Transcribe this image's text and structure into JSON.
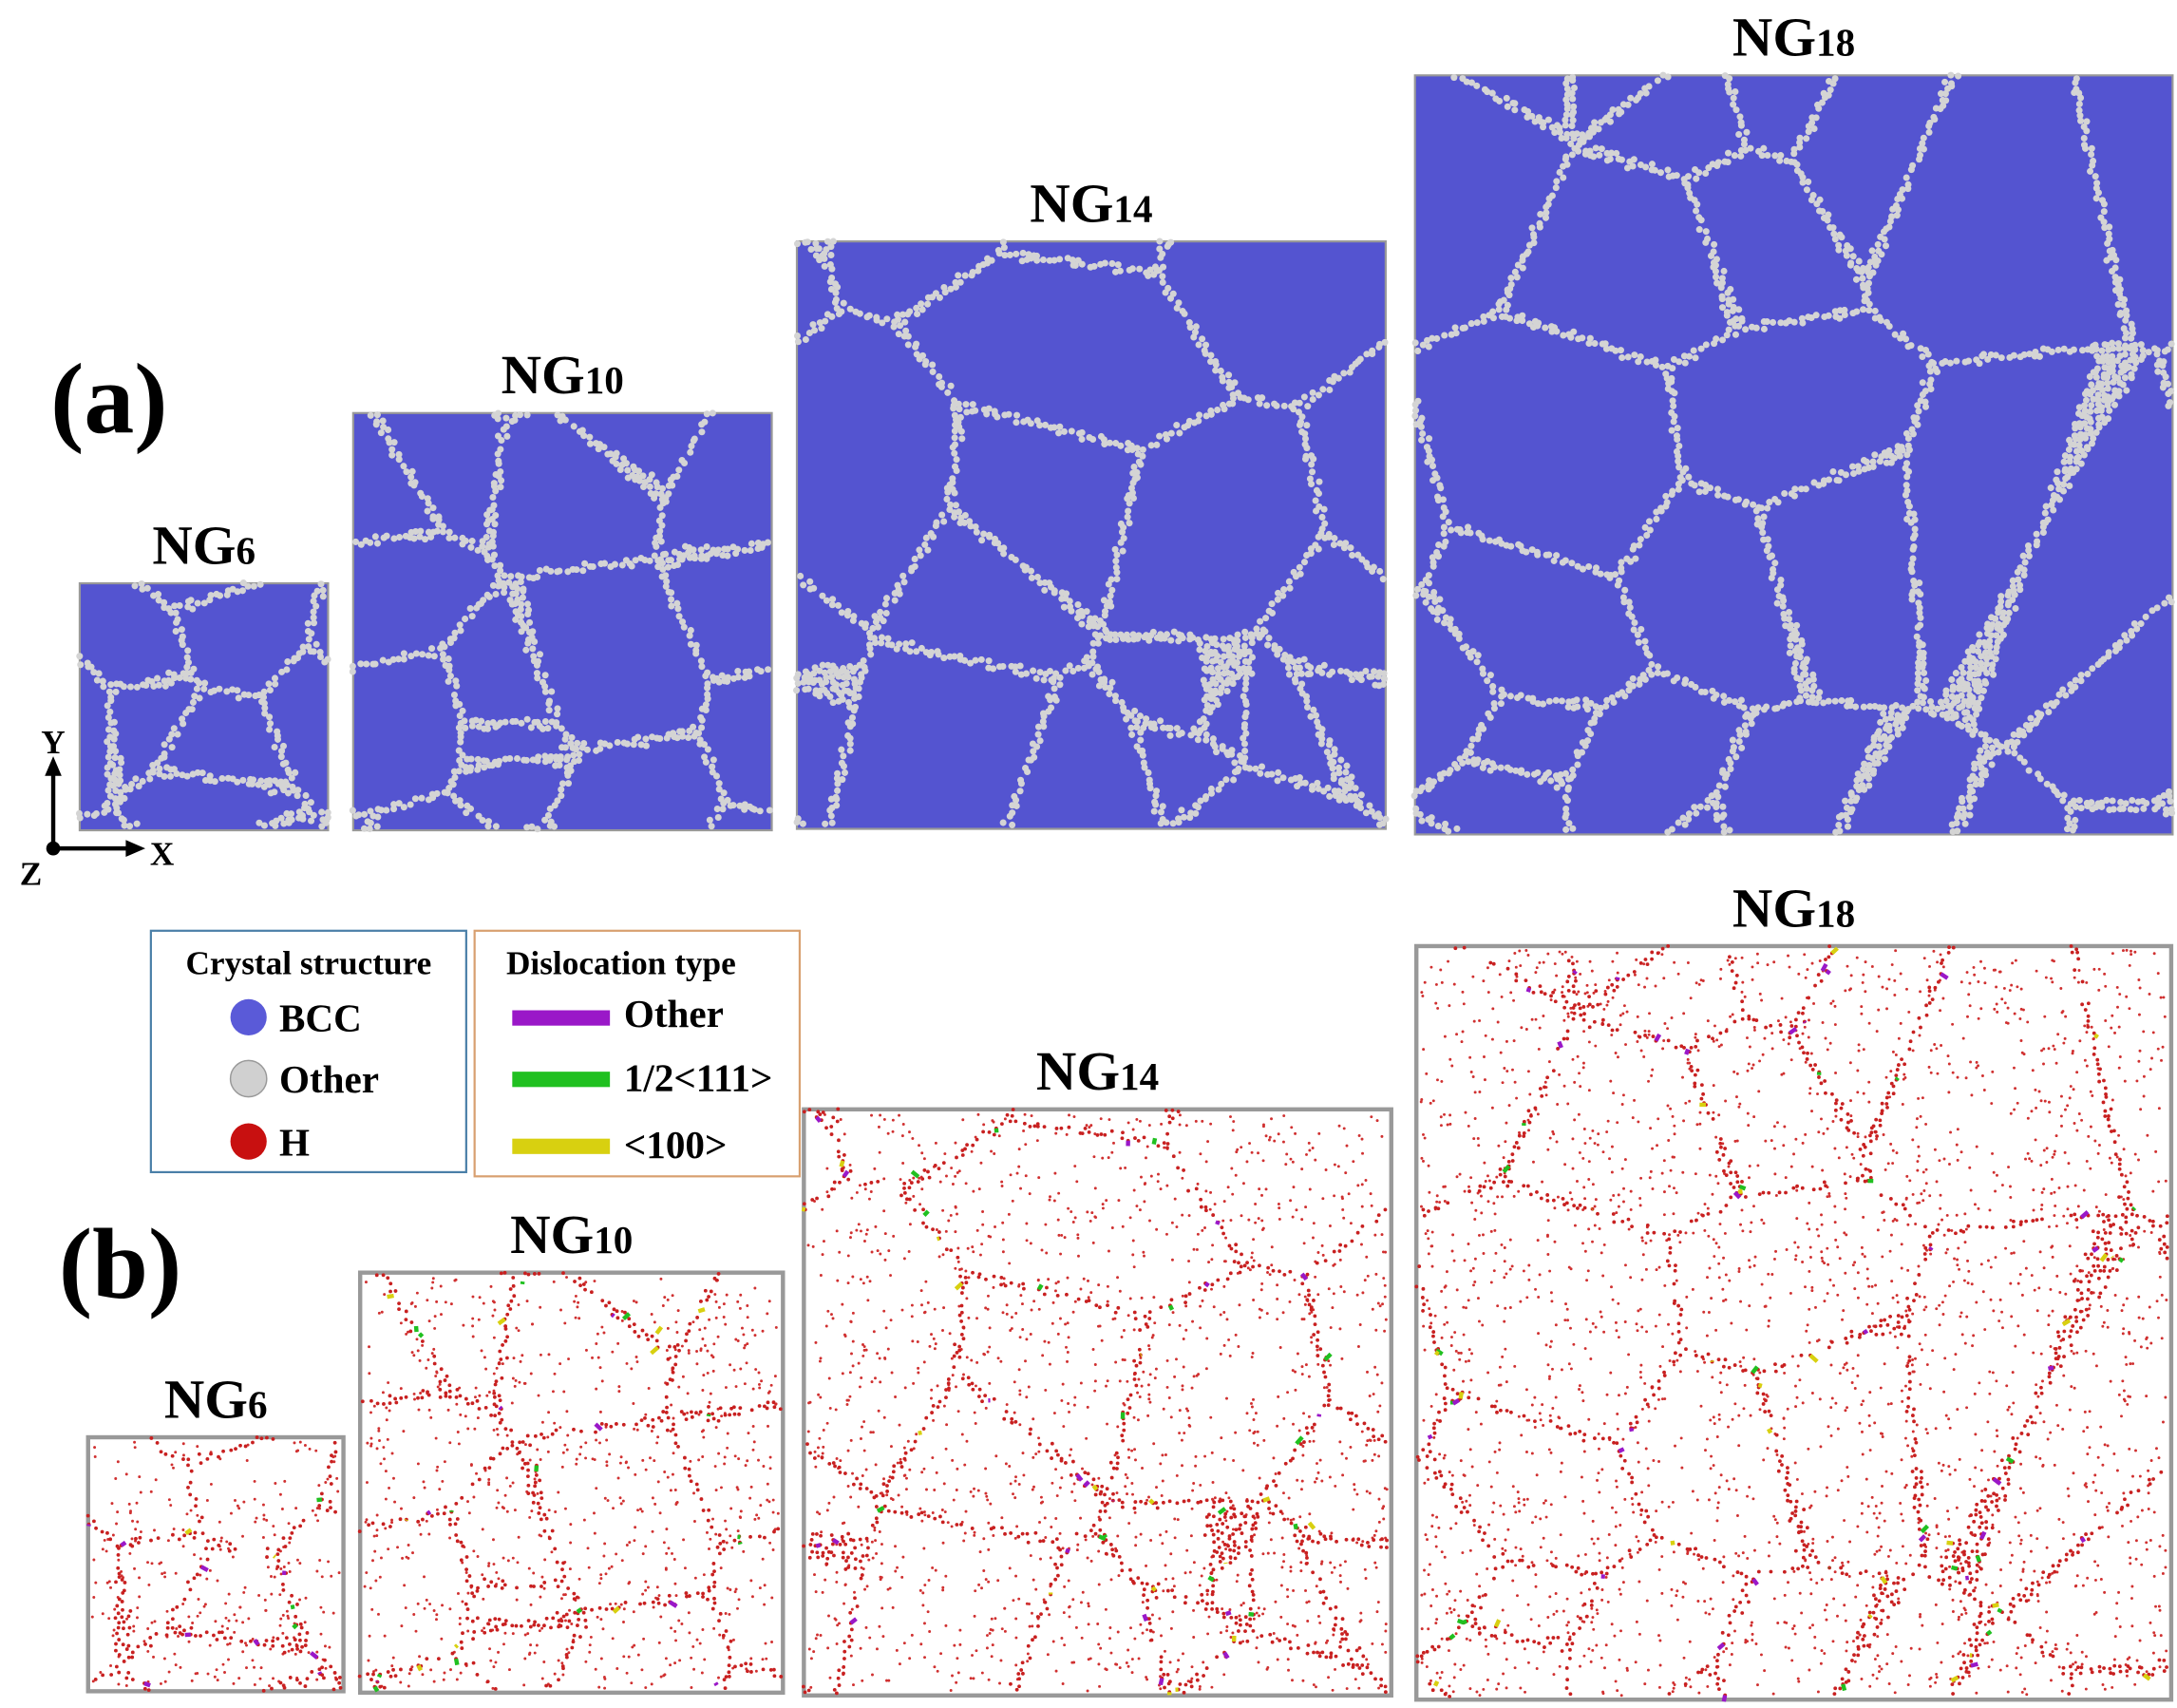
{
  "panel_a": {
    "label": "(a)",
    "items": [
      {
        "name": "NG",
        "sub": "6"
      },
      {
        "name": "NG",
        "sub": "10"
      },
      {
        "name": "NG",
        "sub": "14"
      },
      {
        "name": "NG",
        "sub": "18"
      }
    ]
  },
  "panel_b": {
    "label": "(b)",
    "items": [
      {
        "name": "NG",
        "sub": "6"
      },
      {
        "name": "NG",
        "sub": "10"
      },
      {
        "name": "NG",
        "sub": "14"
      },
      {
        "name": "NG",
        "sub": "18"
      }
    ]
  },
  "axes": {
    "y": "Y",
    "x": "X",
    "z": "Z"
  },
  "legend": {
    "crystal": {
      "title": "Crystal structure",
      "items": [
        "BCC",
        "Other",
        "H"
      ]
    },
    "dislocation": {
      "title": "Dislocation type",
      "items": [
        "Other",
        "1/2<111>",
        "<100>"
      ]
    }
  }
}
